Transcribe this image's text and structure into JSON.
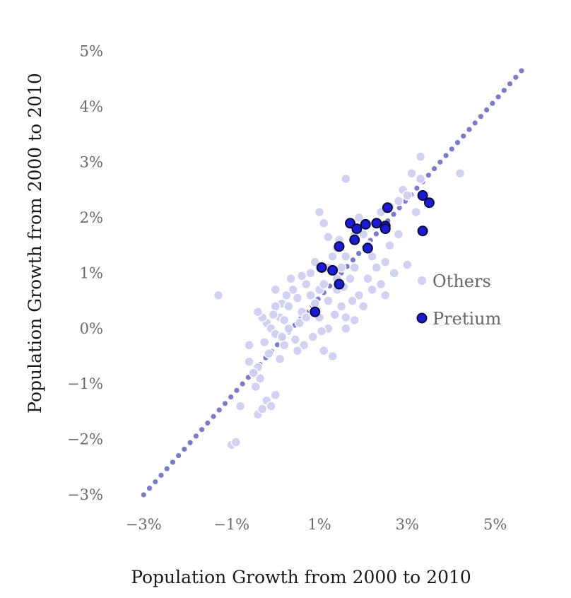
{
  "chart_data": {
    "type": "scatter",
    "xlabel": "Population Growth from 2000 to 2010",
    "ylabel": "Population Growth from 2000 to 2010",
    "xlim": [
      -3.6,
      5.6
    ],
    "ylim": [
      -3.0,
      5.2
    ],
    "x_ticks": [
      -3,
      -1,
      1,
      3,
      5
    ],
    "y_ticks": [
      -3,
      -2,
      -1,
      0,
      1,
      2,
      3,
      4,
      5
    ],
    "x_tick_labels": [
      "−3%",
      "−1%",
      "1%",
      "3%",
      "5%"
    ],
    "y_tick_labels": [
      "−3%",
      "−2%",
      "−1%",
      "0%",
      "1%",
      "2%",
      "3%",
      "4%",
      "5%"
    ],
    "grid": false,
    "legend_position": "right",
    "reference_line": {
      "style": "dotted",
      "color": "#7b7bc8",
      "from": [
        -3.0,
        -3.0
      ],
      "to": [
        5.6,
        4.65
      ]
    },
    "series": [
      {
        "name": "Others",
        "color": "#cfd0f2",
        "points": [
          [
            -1.3,
            0.6
          ],
          [
            -1.0,
            -2.1
          ],
          [
            -0.9,
            -2.05
          ],
          [
            -0.8,
            -1.4
          ],
          [
            -0.6,
            -0.6
          ],
          [
            -0.4,
            -0.7
          ],
          [
            -0.4,
            -1.55
          ],
          [
            -0.3,
            -1.45
          ],
          [
            -0.2,
            -1.3
          ],
          [
            -0.1,
            -1.4
          ],
          [
            0.0,
            -1.2
          ],
          [
            -0.35,
            -0.9
          ],
          [
            -0.5,
            -0.8
          ],
          [
            -0.45,
            -1.05
          ],
          [
            -0.2,
            0.1
          ],
          [
            -0.3,
            0.2
          ],
          [
            -0.1,
            0.0
          ],
          [
            0.0,
            -0.1
          ],
          [
            0.1,
            0.2
          ],
          [
            0.2,
            -0.3
          ],
          [
            0.3,
            0.0
          ],
          [
            0.15,
            0.45
          ],
          [
            0.4,
            0.7
          ],
          [
            0.5,
            0.55
          ],
          [
            0.6,
            0.3
          ],
          [
            0.3,
            0.4
          ],
          [
            0.0,
            0.4
          ],
          [
            -0.25,
            -0.25
          ],
          [
            -0.15,
            -0.45
          ],
          [
            0.2,
            0.15
          ],
          [
            0.55,
            0.1
          ],
          [
            0.65,
            -0.3
          ],
          [
            0.45,
            -0.2
          ],
          [
            0.7,
            0.8
          ],
          [
            0.8,
            1.0
          ],
          [
            0.9,
            1.2
          ],
          [
            0.8,
            0.6
          ],
          [
            1.0,
            0.7
          ],
          [
            1.1,
            0.8
          ],
          [
            1.2,
            0.5
          ],
          [
            1.0,
            0.2
          ],
          [
            1.2,
            0.0
          ],
          [
            1.3,
            -0.5
          ],
          [
            1.1,
            -0.4
          ],
          [
            1.5,
            0.4
          ],
          [
            1.6,
            0.2
          ],
          [
            1.4,
            0.9
          ],
          [
            1.5,
            1.1
          ],
          [
            1.6,
            1.3
          ],
          [
            1.7,
            0.9
          ],
          [
            1.8,
            1.1
          ],
          [
            1.9,
            0.6
          ],
          [
            2.0,
            0.4
          ],
          [
            1.6,
            0.0
          ],
          [
            1.8,
            0.15
          ],
          [
            1.4,
            0.7
          ],
          [
            1.2,
            1.1
          ],
          [
            1.3,
            1.3
          ],
          [
            1.0,
            2.1
          ],
          [
            1.1,
            1.9
          ],
          [
            1.2,
            1.65
          ],
          [
            1.4,
            1.45
          ],
          [
            1.6,
            2.7
          ],
          [
            1.8,
            1.7
          ],
          [
            2.0,
            1.7
          ],
          [
            2.1,
            1.5
          ],
          [
            2.2,
            1.3
          ],
          [
            2.3,
            1.1
          ],
          [
            2.1,
            0.9
          ],
          [
            2.2,
            0.7
          ],
          [
            2.4,
            0.8
          ],
          [
            2.5,
            1.2
          ],
          [
            2.6,
            1.5
          ],
          [
            2.5,
            1.8
          ],
          [
            2.4,
            2.1
          ],
          [
            2.6,
            2.2
          ],
          [
            2.8,
            2.3
          ],
          [
            2.8,
            1.7
          ],
          [
            2.9,
            2.5
          ],
          [
            3.0,
            2.4
          ],
          [
            3.1,
            2.8
          ],
          [
            3.3,
            3.1
          ],
          [
            3.3,
            2.7
          ],
          [
            3.0,
            1.15
          ],
          [
            3.2,
            2.1
          ],
          [
            4.2,
            2.8
          ],
          [
            2.5,
            0.6
          ],
          [
            2.7,
            1.0
          ],
          [
            0.5,
            -0.4
          ],
          [
            0.35,
            0.9
          ],
          [
            0.0,
            0.7
          ],
          [
            0.1,
            -0.55
          ],
          [
            -0.4,
            0.3
          ],
          [
            -0.6,
            -0.3
          ],
          [
            0.9,
            0.45
          ],
          [
            1.05,
            -0.05
          ],
          [
            1.35,
            0.25
          ],
          [
            1.75,
            0.5
          ],
          [
            0.25,
            0.6
          ],
          [
            0.85,
            -0.15
          ],
          [
            -0.05,
            0.25
          ],
          [
            0.6,
            0.95
          ],
          [
            1.45,
            1.6
          ],
          [
            1.9,
            2.0
          ],
          [
            2.3,
            1.9
          ],
          [
            0.7,
            0.2
          ],
          [
            0.15,
            -0.15
          ],
          [
            1.55,
            0.75
          ]
        ]
      },
      {
        "name": "Pretium",
        "color": "#1c1cd6",
        "points": [
          [
            0.9,
            0.3
          ],
          [
            1.05,
            1.1
          ],
          [
            1.3,
            1.05
          ],
          [
            1.45,
            0.8
          ],
          [
            1.45,
            1.48
          ],
          [
            1.7,
            1.9
          ],
          [
            1.8,
            1.6
          ],
          [
            1.85,
            1.8
          ],
          [
            2.05,
            1.88
          ],
          [
            2.1,
            1.45
          ],
          [
            2.3,
            1.9
          ],
          [
            2.5,
            1.85
          ],
          [
            2.5,
            1.8
          ],
          [
            2.55,
            2.18
          ],
          [
            3.35,
            2.4
          ],
          [
            3.5,
            2.27
          ],
          [
            3.35,
            1.76
          ]
        ]
      }
    ]
  },
  "legend": {
    "items": [
      {
        "label": "Others",
        "color": "#cfd0f2"
      },
      {
        "label": "Pretium",
        "color": "#1c1cd6"
      }
    ]
  }
}
